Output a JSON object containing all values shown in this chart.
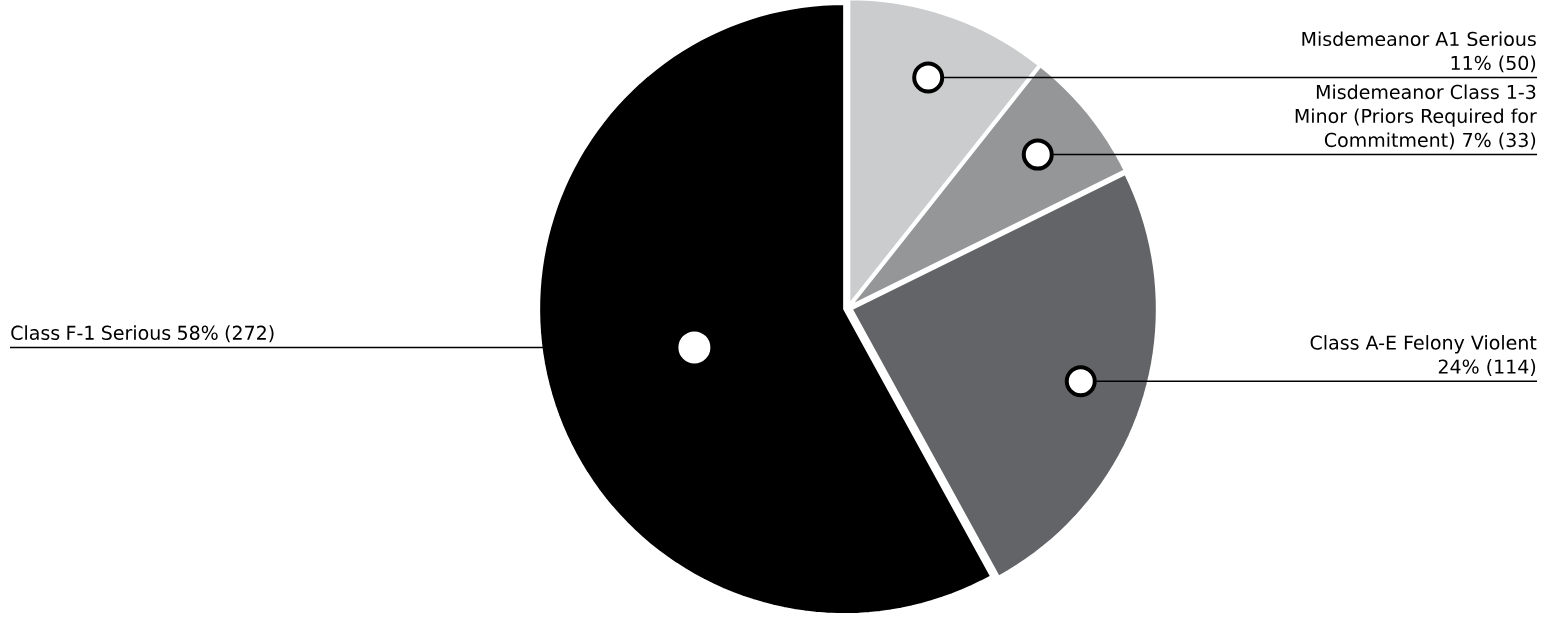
{
  "chart_data": {
    "type": "pie",
    "categories": [
      "Misdemeanor A1 Serious",
      "Misdemeanor Class 1-3 Minor (Priors Required for Commitment)",
      "Class A-E Felony Violent",
      "Class F-1 Serious"
    ],
    "values": [
      50,
      33,
      114,
      272
    ],
    "value_labels": [
      "11% (50)",
      "7% (33)",
      "24% (114)",
      "58% (272)"
    ],
    "colors": [
      "#cbcccd",
      "#959698",
      "#636467",
      "#000000"
    ]
  }
}
